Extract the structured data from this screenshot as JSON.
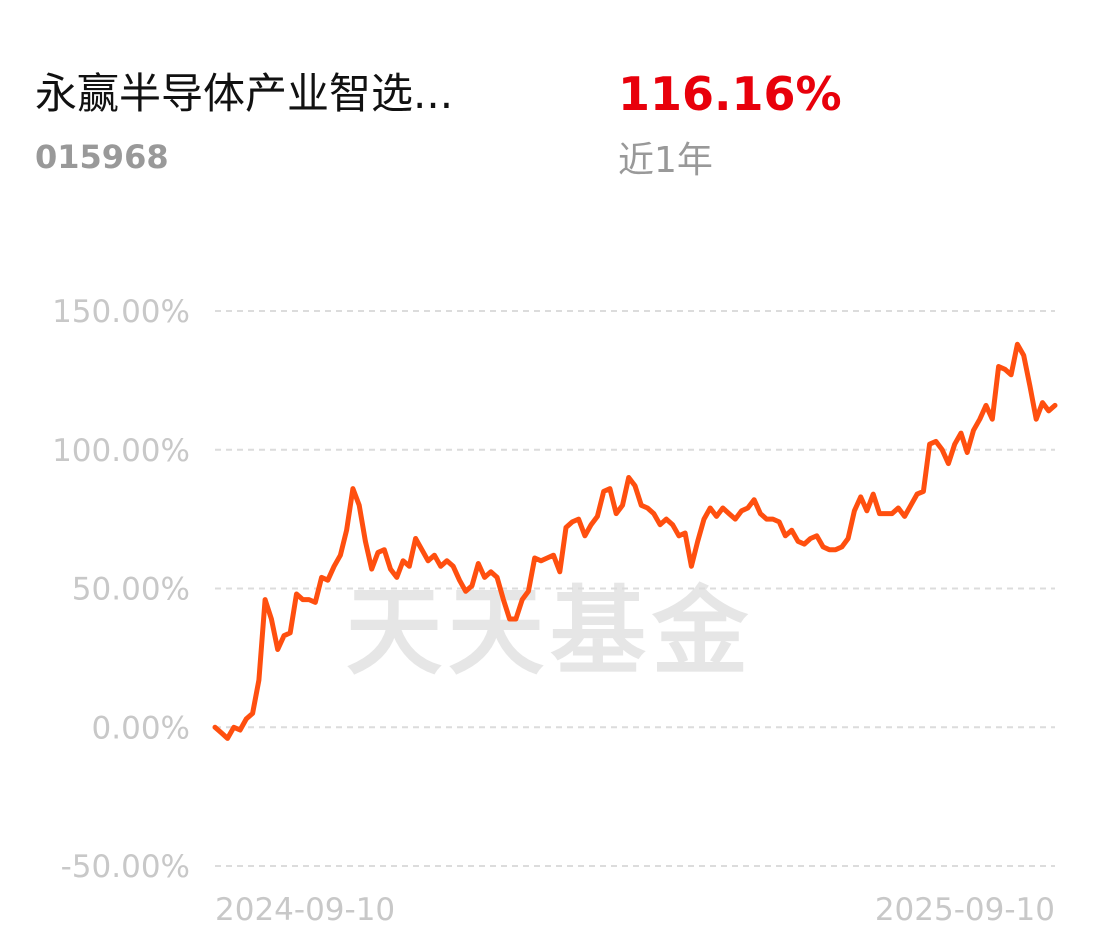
{
  "header": {
    "title": "永赢半导体产业智选...",
    "code": "015968",
    "return": "116.16%",
    "period": "近1年"
  },
  "chart_data": {
    "type": "line",
    "watermark": "天天基金",
    "categories": [
      "2024-09-10",
      null,
      null,
      null,
      null,
      null,
      null,
      null,
      null,
      null,
      null,
      null,
      null,
      null,
      null,
      null,
      null,
      null,
      null,
      null,
      null,
      null,
      null,
      null,
      null,
      null,
      null,
      null,
      null,
      null,
      null,
      null,
      null,
      null,
      null,
      null,
      null,
      null,
      null,
      null,
      null,
      null,
      null,
      null,
      null,
      null,
      null,
      null,
      null,
      null,
      null,
      null,
      null,
      null,
      null,
      null,
      null,
      null,
      null,
      null,
      null,
      null,
      null,
      null,
      null,
      null,
      null,
      null,
      null,
      null,
      null,
      null,
      null,
      null,
      null,
      null,
      null,
      null,
      null,
      null,
      null,
      null,
      null,
      null,
      null,
      null,
      null,
      null,
      null,
      null,
      null,
      null,
      null,
      null,
      null,
      null,
      null,
      null,
      null,
      null,
      null,
      null,
      null,
      null,
      null,
      null,
      null,
      null,
      null,
      null,
      null,
      null,
      null,
      null,
      null,
      null,
      null,
      null,
      null,
      null,
      null,
      null,
      null,
      null,
      null,
      null,
      null,
      null,
      null,
      null,
      null,
      null,
      null,
      null,
      "2025-09-10"
    ],
    "series": [
      {
        "color": "#ff4f0f",
        "values": [
          0,
          -2,
          -4,
          0,
          -1,
          3,
          5,
          17,
          46,
          39,
          28,
          33,
          34,
          48,
          46,
          46,
          45,
          54,
          53,
          58,
          62,
          71,
          86,
          80,
          67,
          57,
          63,
          64,
          57,
          54,
          60,
          58,
          68,
          64,
          60,
          62,
          58,
          60,
          58,
          53,
          49,
          51,
          59,
          54,
          56,
          54,
          46,
          39,
          39,
          46,
          49,
          61,
          60,
          61,
          62,
          56,
          72,
          74,
          75,
          69,
          73,
          76,
          85,
          86,
          77,
          80,
          90,
          87,
          80,
          79,
          77,
          73,
          75,
          73,
          69,
          70,
          58,
          67,
          75,
          79,
          76,
          79,
          77,
          75,
          78,
          79,
          82,
          77,
          75,
          75,
          74,
          69,
          71,
          67,
          66,
          68,
          69,
          65,
          64,
          64,
          65,
          68,
          78,
          83,
          78,
          84,
          77,
          77,
          77,
          79,
          76,
          80,
          84,
          85,
          102,
          103,
          100,
          95,
          102,
          106,
          99,
          107,
          111,
          116,
          111,
          130,
          129,
          127,
          138,
          134,
          123,
          111,
          117,
          114,
          116
        ]
      }
    ],
    "ylim": [
      -50,
      150
    ],
    "yticks": [
      {
        "value": -50,
        "label": "-50.00%"
      },
      {
        "value": 0,
        "label": "0.00%"
      },
      {
        "value": 50,
        "label": "50.00%"
      },
      {
        "value": 100,
        "label": "100.00%"
      },
      {
        "value": 150,
        "label": "150.00%"
      }
    ],
    "grid": true
  }
}
